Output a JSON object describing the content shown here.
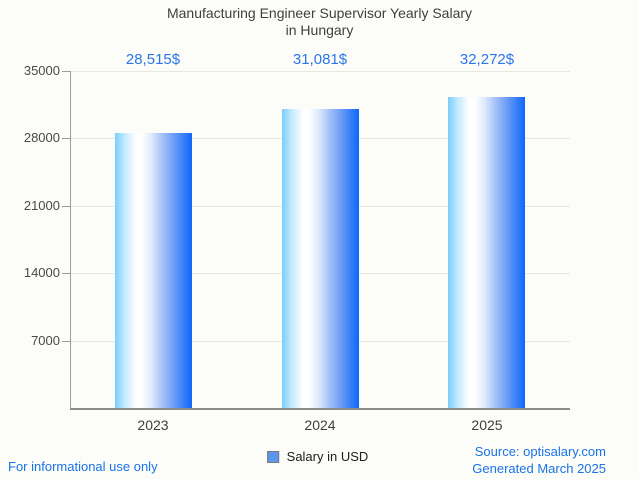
{
  "title": {
    "line1": "Manufacturing Engineer Supervisor Yearly Salary",
    "line2": "in Hungary"
  },
  "chart_data": {
    "type": "bar",
    "title": "Manufacturing Engineer Supervisor Yearly Salary in Hungary",
    "categories": [
      "2023",
      "2024",
      "2025"
    ],
    "values": [
      28515,
      31081,
      32272
    ],
    "value_labels": [
      "28,515$",
      "31,081$",
      "32,272$"
    ],
    "series_name": "Salary in USD",
    "xlabel": "",
    "ylabel": "",
    "ylim": [
      0,
      35000
    ],
    "yticks": [
      35000,
      28000,
      21000,
      14000,
      7000
    ],
    "ytick_labels": [
      "35000",
      "28000",
      "21000",
      "14000",
      "7000"
    ],
    "grid": true,
    "legend_position": "bottom",
    "bar_gradient": [
      "#7ccdfc",
      "#ffffff",
      "#0f66fb"
    ],
    "accent_color": "#1a73e8"
  },
  "legend": {
    "label": "Salary in USD",
    "swatch_color": "#5b96ea"
  },
  "footer": {
    "left": "For informational use only",
    "source": "Source: optisalary.com",
    "generated": "Generated March 2025"
  }
}
